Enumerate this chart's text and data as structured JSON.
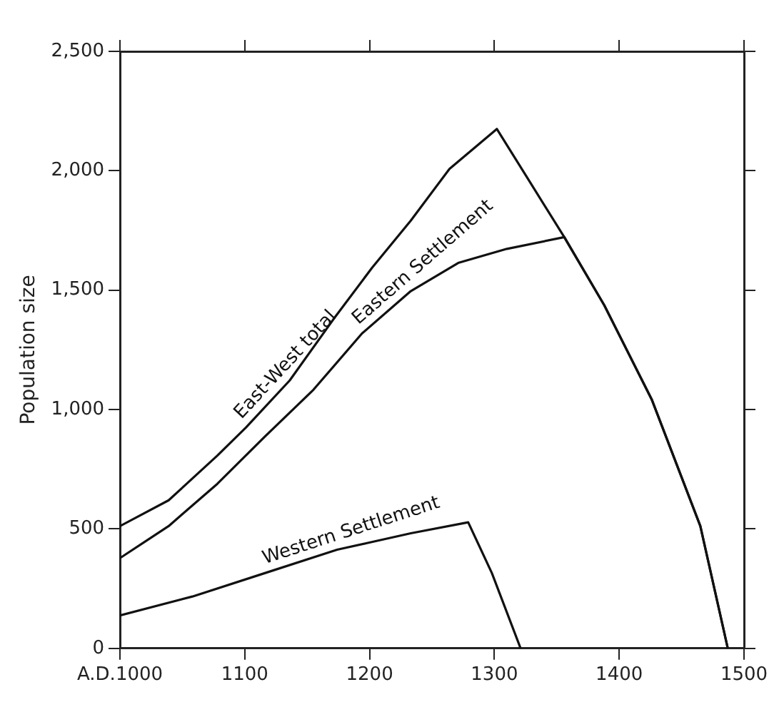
{
  "chart_data": {
    "type": "line",
    "ylabel": "Population size",
    "xlim": [
      1000,
      1500
    ],
    "ylim": [
      0,
      2500
    ],
    "xticks": [
      {
        "value": 1000,
        "label": "A.D.1000"
      },
      1100,
      1200,
      1300,
      1400,
      1500
    ],
    "yticks": [
      0,
      500,
      {
        "value": 1000,
        "label": "1,000"
      },
      {
        "value": 1500,
        "label": "1,500"
      },
      {
        "value": 2000,
        "label": "2,000"
      },
      {
        "value": 2500,
        "label": "2,500"
      }
    ],
    "grid": false,
    "legend": false,
    "marker": "none",
    "line_style": "solid",
    "series": [
      {
        "name": "East-West total",
        "color": "#111111",
        "x": [
          1000,
          1039,
          1078,
          1101,
          1136,
          1171,
          1202,
          1233,
          1264,
          1302,
          1356,
          1388,
          1426,
          1465,
          1487
        ],
        "values": [
          512,
          620,
          807,
          925,
          1122,
          1378,
          1594,
          1791,
          2008,
          2175,
          1722,
          1437,
          1043,
          512,
          0
        ]
      },
      {
        "name": "Eastern Settlement",
        "color": "#111111",
        "x": [
          1000,
          1039,
          1078,
          1116,
          1155,
          1194,
          1233,
          1271,
          1310,
          1356,
          1388,
          1426,
          1465,
          1487
        ],
        "values": [
          378,
          512,
          689,
          886,
          1083,
          1319,
          1496,
          1614,
          1673,
          1722,
          1437,
          1043,
          512,
          0
        ]
      },
      {
        "name": "Western Settlement",
        "color": "#111111",
        "x": [
          1000,
          1058,
          1116,
          1174,
          1233,
          1279,
          1298,
          1321
        ],
        "values": [
          138,
          217,
          315,
          413,
          482,
          528,
          315,
          0
        ]
      }
    ]
  }
}
